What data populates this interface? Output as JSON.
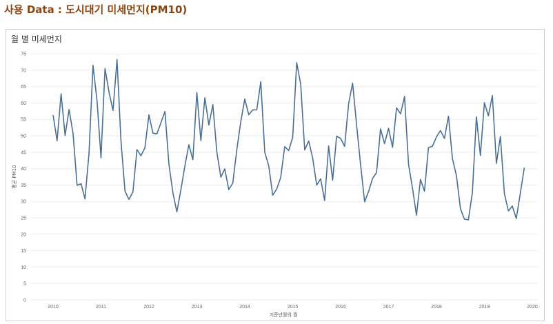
{
  "header": {
    "title": "사용 Data : 도시대기 미세먼지(PM10)"
  },
  "panel": {
    "title": "월 별 미세먼지"
  },
  "colors": {
    "title": "#8b4513",
    "line": "#4a6f96",
    "grid": "#ececec",
    "panel_border": "#cfcfcf"
  },
  "chart_data": {
    "type": "line",
    "title": "월 별 미세먼지",
    "xlabel": "기준년월의 월",
    "ylabel": "평균 PM10",
    "ylim": [
      0,
      75
    ],
    "yticks": [
      0,
      5,
      10,
      15,
      20,
      25,
      30,
      35,
      40,
      45,
      50,
      55,
      60,
      65,
      70,
      75
    ],
    "xticks": [
      "2010",
      "2011",
      "2012",
      "2013",
      "2014",
      "2015",
      "2016",
      "2017",
      "2018",
      "2019",
      "2020"
    ],
    "grid": true,
    "series": [
      {
        "start": "2010-01",
        "values": [
          56.3,
          48.5,
          62.8,
          50.1,
          58.0,
          50.6,
          34.9,
          35.4,
          30.8,
          44.8,
          71.5,
          60.7,
          43.3,
          70.5,
          63.3,
          57.7,
          73.2,
          48.3,
          33.1,
          30.6,
          32.9,
          45.8,
          43.9,
          46.4,
          56.4,
          50.8,
          50.6,
          54.0,
          57.4,
          41.3,
          32.6,
          26.8,
          33.5,
          40.8,
          47.3,
          42.7,
          63.2,
          48.5,
          61.6,
          53.3,
          59.5,
          45.0,
          37.4,
          39.9,
          33.6,
          35.6,
          45.7,
          54.3,
          61.2,
          56.4,
          57.9,
          57.9,
          66.5,
          45.0,
          40.8,
          31.9,
          33.8,
          37.3,
          46.7,
          45.5,
          49.5,
          72.3,
          65.7,
          45.7,
          48.4,
          43.2,
          35.0,
          36.9,
          30.3,
          46.9,
          36.5,
          49.9,
          49.2,
          46.8,
          59.8,
          66.1,
          53.2,
          41.1,
          29.9,
          33.0,
          37.0,
          38.8,
          52.1,
          47.6,
          52.3,
          46.5,
          58.5,
          56.7,
          62.0,
          41.3,
          34.0,
          25.8,
          36.7,
          33.1,
          46.4,
          46.8,
          49.7,
          51.6,
          49.2,
          56.0,
          43.0,
          37.8,
          27.8,
          24.6,
          24.4,
          32.7,
          55.8,
          44.0,
          60.1,
          56.1,
          62.3,
          41.6,
          49.8,
          32.4,
          27.1,
          28.6,
          24.8,
          32.5,
          40.3
        ]
      }
    ]
  }
}
